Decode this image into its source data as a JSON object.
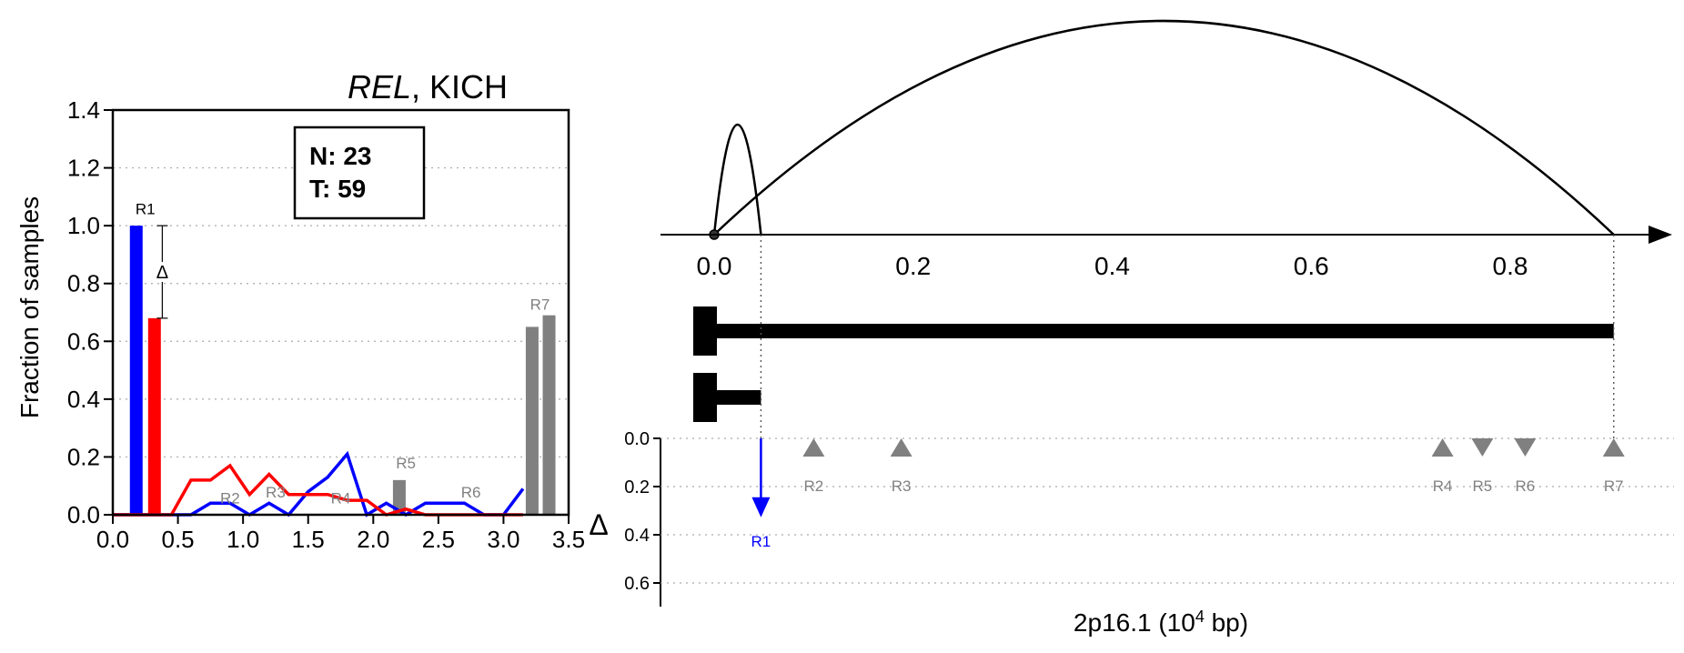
{
  "chart_data": [
    {
      "type": "bar",
      "title_gene": "REL",
      "title_rest": ", KICH",
      "ylabel": "Fraction of samples",
      "xlim": [
        0.0,
        3.5
      ],
      "ylim": [
        0.0,
        1.4
      ],
      "x_ticks": [
        "0.0",
        "0.5",
        "1.0",
        "1.5",
        "2.0",
        "2.5",
        "3.0",
        "3.5"
      ],
      "y_ticks": [
        "0.0",
        "0.2",
        "0.4",
        "0.6",
        "0.8",
        "1.0",
        "1.2",
        "1.4"
      ],
      "grid": "horizontal dotted",
      "counts": {
        "n_label": "N: 23",
        "t_label": "T: 59"
      },
      "colors": {
        "normal": "#0000ff",
        "tumor": "#ff0000",
        "region": "#808080"
      },
      "bars": [
        {
          "x": 0.18,
          "value": 1.0,
          "color": "#0000ff"
        },
        {
          "x": 0.32,
          "value": 0.68,
          "color": "#ff0000"
        },
        {
          "x": 2.2,
          "value": 0.12,
          "color": "#808080"
        },
        {
          "x": 3.22,
          "value": 0.65,
          "color": "#808080"
        },
        {
          "x": 3.35,
          "value": 0.69,
          "color": "#808080"
        }
      ],
      "region_labels": [
        {
          "label": "R1",
          "x": 0.25,
          "y": 1.04,
          "color": "#000000"
        },
        {
          "label": "R2",
          "x": 0.9,
          "y": 0.04,
          "color": "#808080"
        },
        {
          "label": "R3",
          "x": 1.25,
          "y": 0.06,
          "color": "#808080"
        },
        {
          "label": "R4",
          "x": 1.75,
          "y": 0.04,
          "color": "#808080"
        },
        {
          "label": "R5",
          "x": 2.25,
          "y": 0.16,
          "color": "#808080"
        },
        {
          "label": "R6",
          "x": 2.75,
          "y": 0.06,
          "color": "#808080"
        },
        {
          "label": "R7",
          "x": 3.28,
          "y": 0.71,
          "color": "#808080"
        }
      ],
      "delta_marker": {
        "x": 0.31,
        "from": 1.0,
        "to": 0.68,
        "label": "Δ"
      },
      "series": [
        {
          "name": "N",
          "color": "#0000ff",
          "x": [
            0.0,
            0.2,
            0.45,
            0.6,
            0.75,
            0.9,
            1.05,
            1.2,
            1.35,
            1.5,
            1.65,
            1.8,
            1.95,
            2.1,
            2.25,
            2.4,
            2.55,
            2.7,
            2.85,
            3.0,
            3.15
          ],
          "y": [
            0.0,
            0.0,
            0.0,
            0.0,
            0.04,
            0.04,
            0.0,
            0.04,
            0.0,
            0.08,
            0.13,
            0.21,
            0.0,
            0.04,
            0.0,
            0.04,
            0.04,
            0.04,
            0.0,
            0.0,
            0.09
          ]
        },
        {
          "name": "T",
          "color": "#ff0000",
          "x": [
            0.0,
            0.2,
            0.45,
            0.6,
            0.75,
            0.9,
            1.05,
            1.2,
            1.35,
            1.5,
            1.65,
            1.8,
            1.95,
            2.1,
            2.25,
            2.4,
            2.55,
            2.7,
            2.85,
            3.0,
            3.15
          ],
          "y": [
            0.0,
            0.0,
            0.0,
            0.12,
            0.12,
            0.17,
            0.07,
            0.14,
            0.07,
            0.07,
            0.07,
            0.05,
            0.05,
            0.0,
            0.02,
            0.0,
            0.0,
            0.0,
            0.0,
            0.0,
            0.0
          ]
        }
      ]
    },
    {
      "type": "diagram",
      "xlabel": "2p16.1 (10",
      "xlabel_exp": "4",
      "xlabel_tail": " bp)",
      "x_ticks": [
        {
          "label": "0.0",
          "value": 0.0
        },
        {
          "label": "0.2",
          "value": 0.2
        },
        {
          "label": "0.4",
          "value": 0.4
        },
        {
          "label": "0.6",
          "value": 0.6
        },
        {
          "label": "0.8",
          "value": 0.8
        }
      ],
      "arcs": [
        {
          "from": 0.0,
          "to": 0.047,
          "peak": "small"
        },
        {
          "from": 0.0,
          "to": 0.904,
          "peak": "large"
        }
      ],
      "transcripts": [
        {
          "start": 0.0,
          "end": 0.904
        },
        {
          "start": 0.0,
          "end": 0.047
        }
      ],
      "delta_axis_label": "Δ",
      "delta_ticks": [
        "0.0",
        "0.2",
        "0.4",
        "0.6"
      ],
      "delta_ylim": [
        0.0,
        0.7
      ],
      "regions": [
        {
          "label": "R1",
          "x": 0.047,
          "delta": 0.32,
          "kind": "arrow",
          "color": "#0000ff"
        },
        {
          "label": "R2",
          "x": 0.1,
          "delta": 0.0,
          "kind": "up",
          "color": "#808080"
        },
        {
          "label": "R3",
          "x": 0.188,
          "delta": 0.0,
          "kind": "up",
          "color": "#808080"
        },
        {
          "label": "R4",
          "x": 0.732,
          "delta": 0.0,
          "kind": "up",
          "color": "#808080"
        },
        {
          "label": "R5",
          "x": 0.772,
          "delta": 0.0,
          "kind": "down",
          "color": "#808080"
        },
        {
          "label": "R6",
          "x": 0.815,
          "delta": 0.0,
          "kind": "down",
          "color": "#808080"
        },
        {
          "label": "R7",
          "x": 0.904,
          "delta": 0.0,
          "kind": "up",
          "color": "#808080"
        }
      ]
    }
  ]
}
